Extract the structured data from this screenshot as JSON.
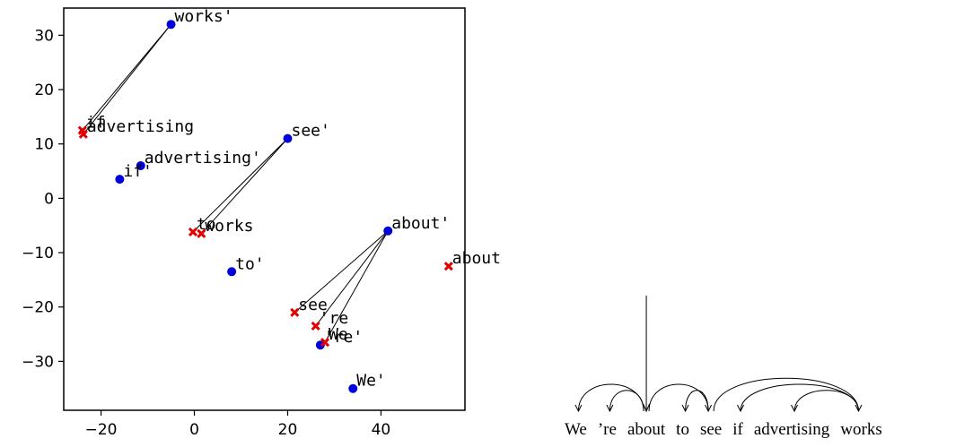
{
  "chart_data": [
    {
      "type": "scatter",
      "xlim": [
        -28,
        58
      ],
      "ylim": [
        -39,
        35
      ],
      "x_ticks": [
        -20,
        0,
        20,
        40
      ],
      "y_ticks": [
        -30,
        -20,
        -10,
        0,
        10,
        20,
        30
      ],
      "x_tick_labels": [
        "−20",
        "0",
        "20",
        "40"
      ],
      "y_tick_labels": [
        "−30",
        "−20",
        "−10",
        "0",
        "10",
        "20",
        "30"
      ],
      "grid": false,
      "colors": {
        "primed": "#0000dd",
        "unprimed": "#e00000",
        "line": "#000000"
      },
      "series": [
        {
          "marker": "circle",
          "points": [
            {
              "label": "works'",
              "x": -5,
              "y": 32
            },
            {
              "label": "advertising'",
              "x": -11.5,
              "y": 6
            },
            {
              "label": "if'",
              "x": -16,
              "y": 3.5
            },
            {
              "label": "see'",
              "x": 20,
              "y": 11
            },
            {
              "label": "about'",
              "x": 41.5,
              "y": -6
            },
            {
              "label": "to'",
              "x": 8,
              "y": -13.5
            },
            {
              "label": "'re'",
              "x": 27,
              "y": -27
            },
            {
              "label": "We'",
              "x": 34,
              "y": -35
            }
          ]
        },
        {
          "marker": "x",
          "points": [
            {
              "label": "if",
              "x": -24,
              "y": 12.5
            },
            {
              "label": "advertising",
              "x": -23.8,
              "y": 11.8
            },
            {
              "label": "works",
              "x": 1.5,
              "y": -6.5
            },
            {
              "label": "to",
              "x": -0.3,
              "y": -6.2
            },
            {
              "label": "see",
              "x": 21.5,
              "y": -21
            },
            {
              "label": "'re",
              "x": 26,
              "y": -23.5
            },
            {
              "label": "We",
              "x": 28,
              "y": -26.5
            },
            {
              "label": "about",
              "x": 54.5,
              "y": -12.5
            }
          ]
        }
      ],
      "connections": [
        {
          "from": "works'",
          "to": "if"
        },
        {
          "from": "works'",
          "to": "advertising"
        },
        {
          "from": "see'",
          "to": "works"
        },
        {
          "from": "see'",
          "to": "to"
        },
        {
          "from": "about'",
          "to": "see"
        },
        {
          "from": "about'",
          "to": "'re"
        },
        {
          "from": "about'",
          "to": "We"
        }
      ]
    },
    {
      "type": "dependency-tree",
      "tokens": [
        "We",
        "’re",
        "about",
        "to",
        "see",
        "if",
        "advertising",
        "works"
      ],
      "root": 2,
      "arcs": [
        {
          "head": 2,
          "dep": 0
        },
        {
          "head": 2,
          "dep": 1
        },
        {
          "head": 2,
          "dep": 4
        },
        {
          "head": 4,
          "dep": 3
        },
        {
          "head": 7,
          "dep": 5
        },
        {
          "head": 7,
          "dep": 6
        },
        {
          "head": 4,
          "dep": 7
        }
      ]
    }
  ]
}
